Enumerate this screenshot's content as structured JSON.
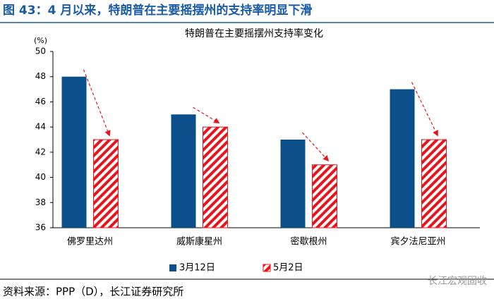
{
  "header": {
    "title": "图 43：4 月以来，特朗普在主要摇摆州的支持率明显下滑"
  },
  "chart_data": {
    "type": "bar",
    "title": "特朗普在主要摇摆州支持率变化",
    "y_label": "(%)",
    "categories": [
      "佛罗里达州",
      "威斯康星州",
      "密歇根州",
      "宾夕法尼亚州"
    ],
    "series": [
      {
        "name": "3月12日",
        "color": "#0b4f8a",
        "values": [
          48,
          45,
          43,
          47
        ]
      },
      {
        "name": "5月2日",
        "color": "#e8141c",
        "hatch": true,
        "values": [
          43,
          44,
          41,
          43
        ]
      }
    ],
    "ylim": [
      36,
      50
    ],
    "yticks": [
      36,
      38,
      40,
      42,
      44,
      46,
      48,
      50
    ],
    "grid": false
  },
  "footer": {
    "source": "资料来源：PPP（D），长江证券研究所",
    "watermark": "长江宏观固收"
  }
}
